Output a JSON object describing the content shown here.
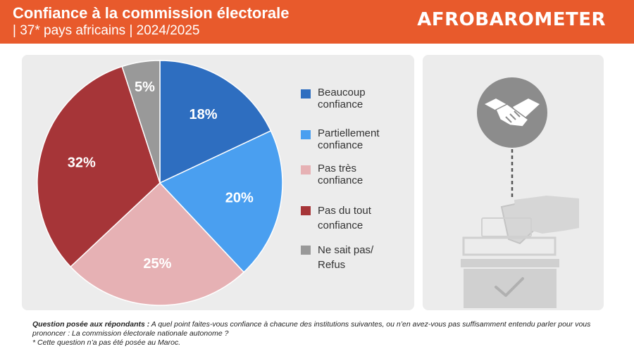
{
  "header": {
    "title": "Confiance à la commission électorale",
    "subtitle": "| 37* pays africains | 2024/2025",
    "logo": "AFROBAROMETER"
  },
  "chart_data": {
    "type": "pie",
    "categories": [
      "Beaucoup confiance",
      "Partiellement confiance",
      "Pas très confiance",
      "Pas du tout confiance",
      "Ne sait pas/ Refus"
    ],
    "values": [
      18,
      20,
      25,
      32,
      5
    ],
    "labels": [
      "18%",
      "20%",
      "25%",
      "32%",
      "5%"
    ],
    "colors": [
      "#2e6ec0",
      "#4a9ff0",
      "#e6b1b4",
      "#a63538",
      "#999999"
    ],
    "legend_position": "right"
  },
  "legend": [
    {
      "label_line1": "Beaucoup",
      "label_line2": "confiance"
    },
    {
      "label_line1": "Partiellement",
      "label_line2": "confiance"
    },
    {
      "label_line1": "Pas très",
      "label_line2": "confiance"
    },
    {
      "label_line1": "Pas du tout",
      "label_line2": "confiance"
    },
    {
      "label_line1": "Ne sait pas/",
      "label_line2": "Refus"
    }
  ],
  "illustration": {
    "icons": [
      "handshake-icon",
      "ballot-box-icon"
    ]
  },
  "footnote": {
    "question_label": "Question posée aux répondants :",
    "question_text": " A quel point faites-vous confiance à chacune des institutions suivantes, ou n’en avez-vous pas suffisamment entendu parler pour vous prononcer : La commission électorale nationale autonome ?",
    "note": "* Cette question n’a pas été posée au Maroc."
  }
}
